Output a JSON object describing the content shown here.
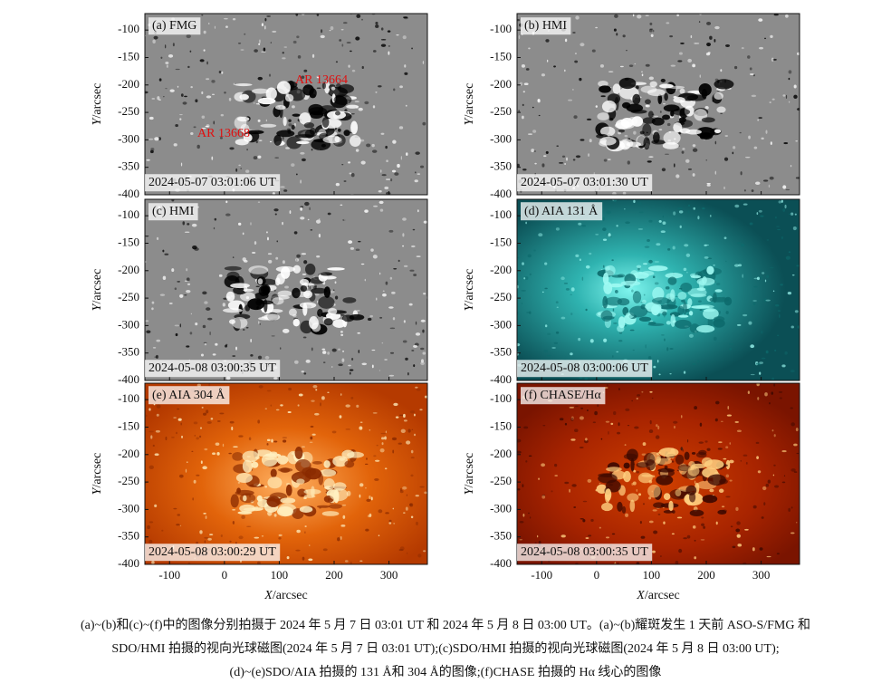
{
  "figure": {
    "panels": [
      {
        "label": "(a) FMG",
        "timestamp": "2024-05-07 03:01:06 UT",
        "annotations": [
          "AR 13664",
          "AR 13668"
        ]
      },
      {
        "label": "(b) HMI",
        "timestamp": "2024-05-07 03:01:30 UT"
      },
      {
        "label": "(c) HMI",
        "timestamp": "2024-05-08 03:00:35 UT"
      },
      {
        "label": "(d) AIA 131 Å",
        "timestamp": "2024-05-08 03:00:06 UT"
      },
      {
        "label": "(e) AIA 304 Å",
        "timestamp": "2024-05-08 03:00:29 UT"
      },
      {
        "label": "(f) CHASE/Hα",
        "timestamp": "2024-05-08 03:00:35 UT"
      }
    ],
    "y_axis_label": {
      "symbol": "Y",
      "unit": "/arcsec"
    },
    "x_axis_label": {
      "symbol": "X",
      "unit": "/arcsec"
    },
    "xlim": [
      -145,
      370
    ],
    "ylim": [
      -400,
      -70
    ],
    "xticks": [
      -100,
      0,
      100,
      200,
      300
    ],
    "yticks": [
      -100,
      -150,
      -200,
      -250,
      -300,
      -350,
      -400
    ]
  },
  "caption": [
    "(a)~(b)和(c)~(f)中的图像分别拍摄于 2024 年 5 月 7 日 03:01 UT 和 2024 年 5 月 8 日 03:00 UT。(a)~(b)耀斑发生 1 天前 ASO-S/FMG 和",
    "SDO/HMI 拍摄的视向光球磁图(2024 年 5 月 7 日 03:01 UT);(c)SDO/HMI 拍摄的视向光球磁图(2024 年 5 月 8 日 03:00 UT);",
    "(d)~(e)SDO/AIA 拍摄的 131 Å和 304 Å的图像;(f)CHASE 拍摄的 Hα 线心的图像"
  ]
}
